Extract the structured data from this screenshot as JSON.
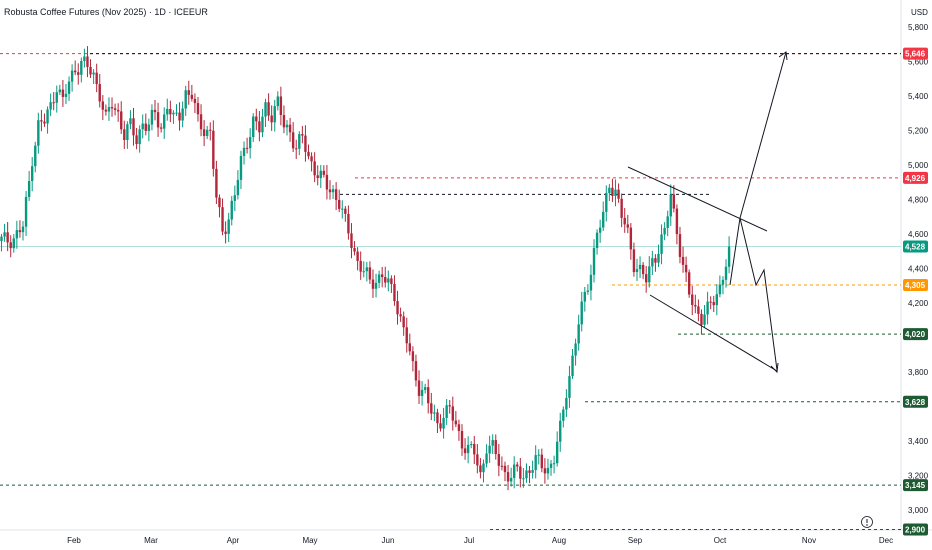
{
  "chart_data": {
    "type": "candlestick",
    "title": "Robusta Coffee Futures (Nov 2025) · 1D · ICEEUR",
    "currency": "USD",
    "ylim": [
      2880,
      5920
    ],
    "y_ticks": [
      {
        "v": 5800,
        "t": "5,800"
      },
      {
        "v": 5600,
        "t": "5,600"
      },
      {
        "v": 5400,
        "t": "5,400"
      },
      {
        "v": 5200,
        "t": "5,200"
      },
      {
        "v": 5000,
        "t": "5,000"
      },
      {
        "v": 4800,
        "t": "4,800"
      },
      {
        "v": 4600,
        "t": "4,600"
      },
      {
        "v": 4400,
        "t": "4,400"
      },
      {
        "v": 4200,
        "t": "4,200"
      },
      {
        "v": 3800,
        "t": "3,800"
      },
      {
        "v": 3400,
        "t": "3,400"
      },
      {
        "v": 3200,
        "t": "3,200"
      },
      {
        "v": 3000,
        "t": "3,000"
      }
    ],
    "x_ticks": [
      "Feb",
      "Mar",
      "Apr",
      "May",
      "Jun",
      "Jul",
      "Aug",
      "Sep",
      "Oct",
      "Nov",
      "Dec"
    ],
    "price_levels": [
      {
        "label": "5,646",
        "value": 5646,
        "color": "#f23645",
        "style": "dashed"
      },
      {
        "label": "4,926",
        "value": 4926,
        "color": "#f23645",
        "style": "dashed"
      },
      {
        "label": "4,528",
        "value": 4528,
        "color": "#089981",
        "style": "solid"
      },
      {
        "label": "4,305",
        "value": 4305,
        "color": "#ff9800",
        "style": "dashed"
      },
      {
        "label": "4,020",
        "value": 4020,
        "color": "#1e5a32",
        "style": "dashed"
      },
      {
        "label": "3,628",
        "value": 3628,
        "color": "#1e5a32",
        "style": "dashed"
      },
      {
        "label": "3,145",
        "value": 3145,
        "color": "#1e5a32",
        "style": "dashed"
      },
      {
        "label": "2,900",
        "value": 2900,
        "color": "#1e5a32",
        "style": "dashed"
      }
    ],
    "path_points": [
      [
        1,
        4560
      ],
      [
        4,
        4580
      ],
      [
        7,
        4640
      ],
      [
        9,
        4900
      ],
      [
        10,
        5050
      ],
      [
        12,
        5230
      ],
      [
        14,
        5250
      ],
      [
        16,
        5340
      ],
      [
        18,
        5470
      ],
      [
        20,
        5360
      ],
      [
        22,
        5480
      ],
      [
        24,
        5560
      ],
      [
        26,
        5600
      ],
      [
        28,
        5560
      ],
      [
        30,
        5520
      ],
      [
        32,
        5420
      ],
      [
        34,
        5260
      ],
      [
        36,
        5350
      ],
      [
        38,
        5300
      ],
      [
        40,
        5180
      ],
      [
        42,
        5220
      ],
      [
        44,
        5150
      ],
      [
        46,
        5250
      ],
      [
        48,
        5220
      ],
      [
        50,
        5300
      ],
      [
        52,
        5220
      ],
      [
        54,
        5350
      ],
      [
        56,
        5250
      ],
      [
        58,
        5300
      ],
      [
        60,
        5420
      ],
      [
        62,
        5400
      ],
      [
        64,
        5250
      ],
      [
        66,
        5220
      ],
      [
        68,
        5180
      ],
      [
        70,
        4800
      ],
      [
        72,
        4620
      ],
      [
        74,
        4700
      ],
      [
        76,
        4820
      ],
      [
        78,
        5020
      ],
      [
        80,
        5150
      ],
      [
        82,
        5250
      ],
      [
        84,
        5200
      ],
      [
        86,
        5340
      ],
      [
        88,
        5300
      ],
      [
        90,
        5350
      ],
      [
        92,
        5230
      ],
      [
        94,
        5200
      ],
      [
        96,
        5100
      ],
      [
        98,
        5150
      ],
      [
        100,
        5050
      ],
      [
        102,
        4980
      ],
      [
        104,
        4920
      ],
      [
        106,
        4880
      ],
      [
        108,
        4850
      ],
      [
        110,
        4780
      ],
      [
        112,
        4660
      ],
      [
        114,
        4560
      ],
      [
        116,
        4440
      ],
      [
        118,
        4380
      ],
      [
        120,
        4320
      ],
      [
        122,
        4340
      ],
      [
        124,
        4360
      ],
      [
        126,
        4300
      ],
      [
        128,
        4250
      ],
      [
        130,
        4110
      ],
      [
        132,
        3980
      ],
      [
        134,
        3820
      ],
      [
        136,
        3720
      ],
      [
        138,
        3680
      ],
      [
        140,
        3560
      ],
      [
        142,
        3500
      ],
      [
        144,
        3560
      ],
      [
        146,
        3580
      ],
      [
        148,
        3480
      ],
      [
        150,
        3400
      ],
      [
        152,
        3350
      ],
      [
        154,
        3330
      ],
      [
        156,
        3200
      ],
      [
        158,
        3380
      ],
      [
        160,
        3350
      ],
      [
        162,
        3280
      ],
      [
        164,
        3220
      ],
      [
        166,
        3200
      ],
      [
        168,
        3220
      ],
      [
        170,
        3200
      ],
      [
        172,
        3240
      ],
      [
        174,
        3280
      ],
      [
        176,
        3260
      ],
      [
        178,
        3240
      ],
      [
        180,
        3300
      ],
      [
        182,
        3460
      ],
      [
        184,
        3700
      ],
      [
        186,
        3880
      ],
      [
        188,
        4080
      ],
      [
        190,
        4240
      ],
      [
        192,
        4400
      ],
      [
        194,
        4600
      ],
      [
        196,
        4700
      ],
      [
        198,
        4900
      ],
      [
        200,
        4850
      ],
      [
        202,
        4700
      ],
      [
        204,
        4600
      ],
      [
        206,
        4440
      ],
      [
        208,
        4380
      ],
      [
        210,
        4330
      ],
      [
        212,
        4450
      ],
      [
        214,
        4520
      ],
      [
        216,
        4600
      ],
      [
        218,
        4830
      ],
      [
        220,
        4630
      ],
      [
        222,
        4400
      ],
      [
        224,
        4250
      ],
      [
        226,
        4170
      ],
      [
        228,
        4120
      ],
      [
        230,
        4150
      ],
      [
        232,
        4220
      ],
      [
        234,
        4300
      ],
      [
        236,
        4430
      ],
      [
        238,
        4528
      ]
    ],
    "annotations": {
      "channel_upper": [
        [
          4960,
          628,
          767
        ],
        [
          4650,
          628,
          767
        ]
      ],
      "channel_lower": [
        [
          4280,
          4100
        ],
        [
          3820,
          3820
        ]
      ],
      "arrows": [
        "up to 5,646 target",
        "down to 3,820 target"
      ]
    }
  }
}
